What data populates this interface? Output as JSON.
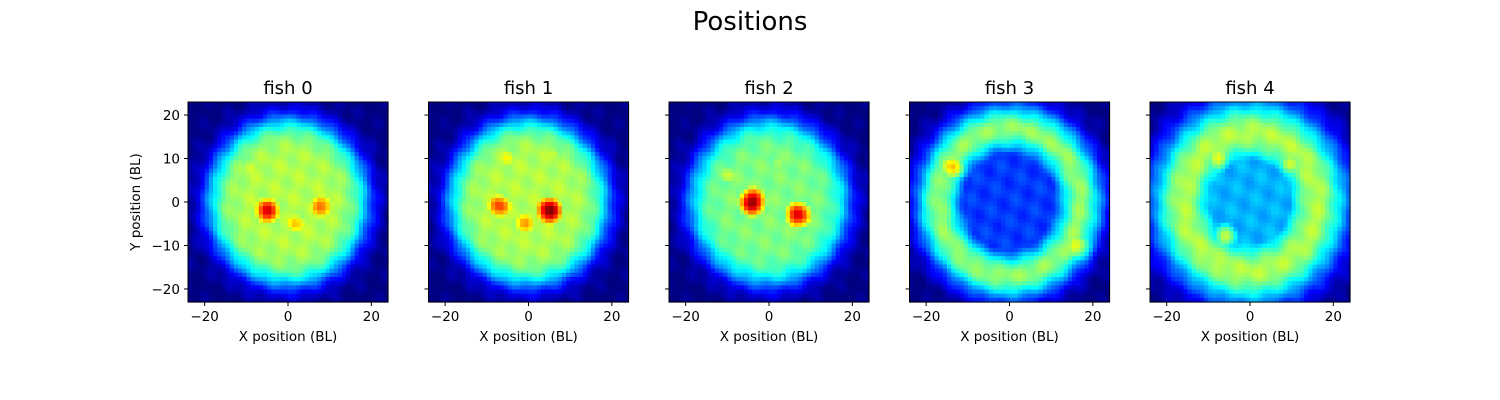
{
  "figure": {
    "title": "Positions"
  },
  "chart_data": {
    "type": "heatmap",
    "title": "Positions",
    "colormap": "jet",
    "colormap_colors": [
      "#00007f",
      "#0000ff",
      "#007fff",
      "#00ffff",
      "#7fff7f",
      "#ffff00",
      "#ff7f00",
      "#ff0000",
      "#7f0000"
    ],
    "xlabel": "X position (BL)",
    "ylabel": "Y position (BL)",
    "xlim": [
      -24,
      24
    ],
    "ylim": [
      -23,
      23
    ],
    "xticks": [
      -20,
      0,
      20
    ],
    "yticks": [
      -20,
      -10,
      0,
      10,
      20
    ],
    "xtick_labels": [
      "−20",
      "0",
      "20"
    ],
    "ytick_labels": [
      "−20",
      "−10",
      "0",
      "10",
      "20"
    ],
    "ylabel_shown_on_first_only": true,
    "panels": [
      {
        "title": "fish 0",
        "pattern": "filled-disc",
        "base_level": 0.55,
        "disc_center": [
          0,
          0
        ],
        "disc_radius": 19,
        "hotspots": [
          {
            "x": -5,
            "y": -2,
            "level": 0.9
          },
          {
            "x": 8,
            "y": -1,
            "level": 0.78
          },
          {
            "x": 2,
            "y": -5,
            "level": 0.68
          },
          {
            "x": -9,
            "y": 8,
            "level": 0.6
          },
          {
            "x": 4,
            "y": 10,
            "level": 0.55
          }
        ]
      },
      {
        "title": "fish 1",
        "pattern": "filled-disc",
        "base_level": 0.55,
        "disc_center": [
          0,
          0
        ],
        "disc_radius": 19,
        "hotspots": [
          {
            "x": 5,
            "y": -2,
            "level": 1.0
          },
          {
            "x": -7,
            "y": -1,
            "level": 0.82
          },
          {
            "x": -1,
            "y": -5,
            "level": 0.72
          },
          {
            "x": -5,
            "y": 10,
            "level": 0.62
          },
          {
            "x": 6,
            "y": 11,
            "level": 0.58
          }
        ]
      },
      {
        "title": "fish 2",
        "pattern": "filled-disc",
        "base_level": 0.5,
        "disc_center": [
          0,
          0
        ],
        "disc_radius": 19,
        "hotspots": [
          {
            "x": -4,
            "y": 0,
            "level": 0.98
          },
          {
            "x": 7,
            "y": -3,
            "level": 0.9
          },
          {
            "x": -10,
            "y": 6,
            "level": 0.58
          },
          {
            "x": 2,
            "y": 9,
            "level": 0.55
          }
        ]
      },
      {
        "title": "fish 3",
        "pattern": "ring",
        "ring_center": [
          0,
          0
        ],
        "ring_radius": 17,
        "ring_width": 5,
        "ring_level": 0.52,
        "inner_level": 0.18,
        "hotspots": [
          {
            "x": -14,
            "y": 8,
            "level": 0.68
          },
          {
            "x": 16,
            "y": -10,
            "level": 0.62
          }
        ]
      },
      {
        "title": "fish 4",
        "pattern": "ring",
        "ring_center": [
          0,
          0
        ],
        "ring_radius": 16,
        "ring_width": 7,
        "ring_level": 0.55,
        "inner_level": 0.3,
        "hotspots": [
          {
            "x": -8,
            "y": 10,
            "level": 0.6
          },
          {
            "x": 10,
            "y": 9,
            "level": 0.58
          },
          {
            "x": -6,
            "y": -8,
            "level": 0.55
          }
        ]
      }
    ]
  }
}
